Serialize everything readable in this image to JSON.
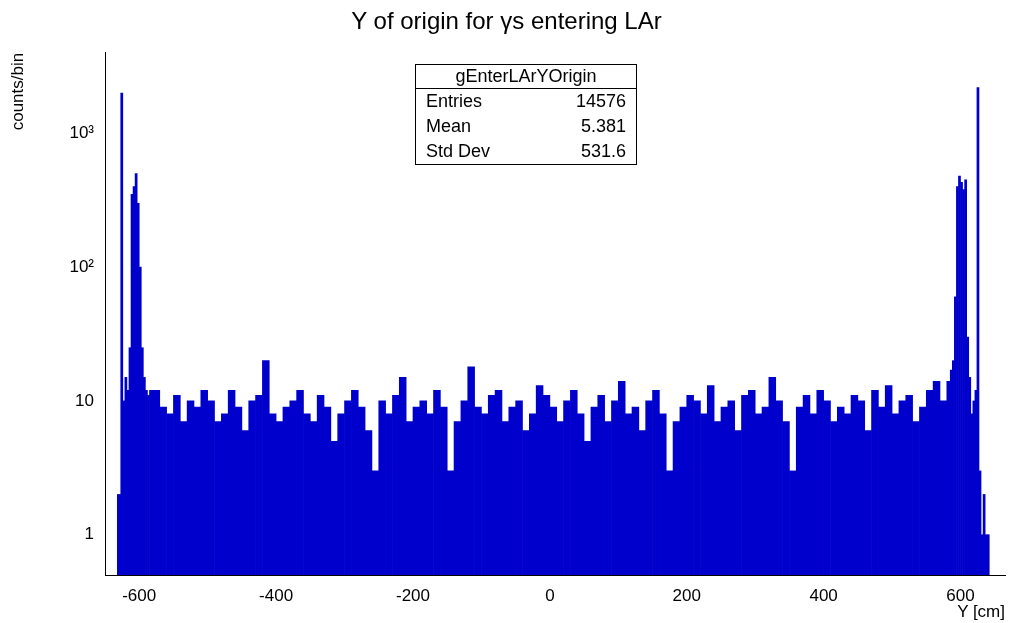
{
  "chart_data": {
    "type": "histogram",
    "title": "Y of origin for γs entering LAr",
    "xlabel": "Y [cm]",
    "ylabel": "counts/bin",
    "bins": [
      -632,
      -627,
      -624,
      -621,
      -618,
      -615,
      -612,
      -609,
      -606,
      -603,
      -600,
      -597,
      -594,
      -591,
      -588,
      -585,
      -580,
      -570,
      -560,
      -550,
      -540,
      -530,
      -520,
      -510,
      -500,
      -490,
      -480,
      -470,
      -460,
      -450,
      -440,
      -430,
      -420,
      -410,
      -400,
      -390,
      -380,
      -370,
      -360,
      -350,
      -340,
      -330,
      -320,
      -310,
      -300,
      -290,
      -280,
      -270,
      -260,
      -250,
      -240,
      -230,
      -220,
      -210,
      -200,
      -190,
      -180,
      -170,
      -160,
      -150,
      -140,
      -130,
      -120,
      -110,
      -100,
      -90,
      -80,
      -70,
      -60,
      -50,
      -40,
      -30,
      -20,
      -10,
      0,
      10,
      20,
      30,
      40,
      50,
      60,
      70,
      80,
      90,
      100,
      110,
      120,
      130,
      140,
      150,
      160,
      170,
      180,
      190,
      200,
      210,
      220,
      230,
      240,
      250,
      260,
      270,
      280,
      290,
      300,
      310,
      320,
      330,
      340,
      350,
      360,
      370,
      380,
      390,
      400,
      410,
      420,
      430,
      440,
      450,
      460,
      470,
      480,
      490,
      500,
      510,
      520,
      530,
      540,
      550,
      560,
      570,
      580,
      585,
      588,
      591,
      594,
      597,
      600,
      603,
      606,
      609,
      612,
      615,
      618,
      621,
      624,
      627,
      630,
      633,
      636,
      639,
      642
    ],
    "values": [
      2,
      2000,
      10,
      15,
      12,
      25,
      350,
      400,
      500,
      300,
      100,
      25,
      15,
      12,
      11,
      12,
      12,
      9,
      8,
      11,
      7,
      10,
      9,
      12,
      10,
      7,
      8,
      12,
      9,
      6,
      10,
      11,
      20,
      8,
      7,
      9,
      10,
      12,
      8,
      7,
      11,
      9,
      5,
      8,
      10,
      12,
      9,
      6,
      3,
      10,
      8,
      11,
      15,
      7,
      9,
      10,
      8,
      12,
      9,
      3,
      7,
      10,
      18,
      9,
      8,
      11,
      12,
      7,
      9,
      10,
      6,
      8,
      13,
      11,
      9,
      7,
      10,
      12,
      8,
      5,
      9,
      11,
      7,
      10,
      14,
      8,
      9,
      6,
      10,
      12,
      8,
      3,
      7,
      9,
      11,
      10,
      8,
      13,
      7,
      9,
      10,
      6,
      11,
      12,
      8,
      9,
      15,
      10,
      7,
      3,
      9,
      11,
      8,
      12,
      10,
      7,
      9,
      8,
      11,
      10,
      6,
      12,
      9,
      13,
      8,
      10,
      11,
      7,
      9,
      12,
      14,
      10,
      14,
      17,
      20,
      60,
      400,
      480,
      430,
      380,
      450,
      30,
      15,
      8,
      10,
      12,
      2200,
      3,
      1,
      2,
      1,
      1
    ],
    "color": "#0000cc",
    "log": "y",
    "xlim": [
      -650,
      665
    ],
    "ylim": [
      0.5,
      4000
    ],
    "xticks": [
      -600,
      -400,
      -200,
      0,
      200,
      400,
      600
    ],
    "yticks": [
      1,
      10,
      {
        "value": 100,
        "label": "10²"
      },
      {
        "value": 1000,
        "label": "10³"
      }
    ],
    "annotations": [
      "gEnterLArYOrigin",
      "Entries 14576",
      "Mean 5.381",
      "Std Dev 531.6"
    ]
  }
}
